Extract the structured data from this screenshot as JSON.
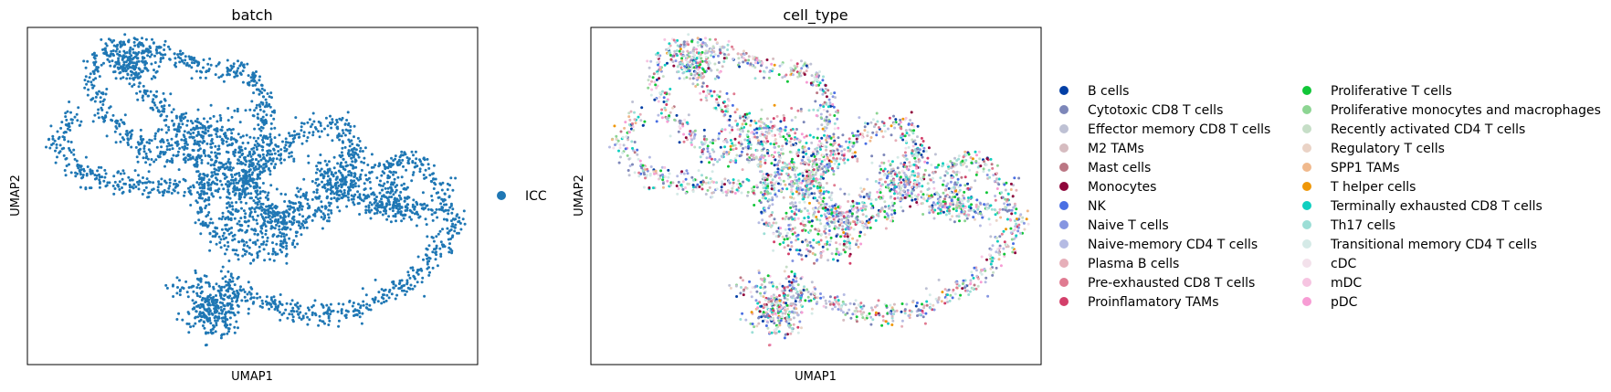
{
  "chart_data": [
    {
      "type": "scatter",
      "title": "batch",
      "xlabel": "UMAP1",
      "ylabel": "UMAP2",
      "grid": false,
      "ticks": "hidden",
      "legend_placement": "right",
      "series": [
        {
          "name": "ICC",
          "color": "#1f77b4"
        }
      ]
    },
    {
      "type": "scatter",
      "title": "cell_type",
      "xlabel": "UMAP1",
      "ylabel": "UMAP2",
      "grid": false,
      "ticks": "hidden",
      "legend_placement": "right",
      "legend_columns": 2,
      "series": [
        {
          "name": "B cells",
          "color": "#023fa5"
        },
        {
          "name": "Cytotoxic CD8 T cells",
          "color": "#7d87b9"
        },
        {
          "name": "Effector memory CD8 T cells",
          "color": "#bec1d4"
        },
        {
          "name": "M2 TAMs",
          "color": "#d6bcc0"
        },
        {
          "name": "Mast cells",
          "color": "#bb7784"
        },
        {
          "name": "Monocytes",
          "color": "#8e063b"
        },
        {
          "name": "NK",
          "color": "#4a6fe3"
        },
        {
          "name": "Naive T cells",
          "color": "#8595e1"
        },
        {
          "name": "Naive-memory CD4 T cells",
          "color": "#b5bbe3"
        },
        {
          "name": "Plasma B cells",
          "color": "#e6afb9"
        },
        {
          "name": "Pre-exhausted CD8 T cells",
          "color": "#e07b91"
        },
        {
          "name": "Proinflamatory TAMs",
          "color": "#d33f6a"
        },
        {
          "name": "Proliferative T cells",
          "color": "#11c638"
        },
        {
          "name": "Proliferative monocytes and macrophages",
          "color": "#8dd593"
        },
        {
          "name": "Recently activated CD4 T cells",
          "color": "#c6dec7"
        },
        {
          "name": "Regulatory T cells",
          "color": "#ead3c6"
        },
        {
          "name": "SPP1 TAMs",
          "color": "#f0b98d"
        },
        {
          "name": "T helper cells",
          "color": "#ef9708"
        },
        {
          "name": "Terminally exhausted CD8 T cells",
          "color": "#0fcfc0"
        },
        {
          "name": "Th17 cells",
          "color": "#9cded6"
        },
        {
          "name": "Transitional memory CD4 T cells",
          "color": "#d5eae7"
        },
        {
          "name": "cDC",
          "color": "#f3e1eb"
        },
        {
          "name": "mDC",
          "color": "#f6c4e1"
        },
        {
          "name": "pDC",
          "color": "#f79cd4"
        }
      ]
    }
  ]
}
